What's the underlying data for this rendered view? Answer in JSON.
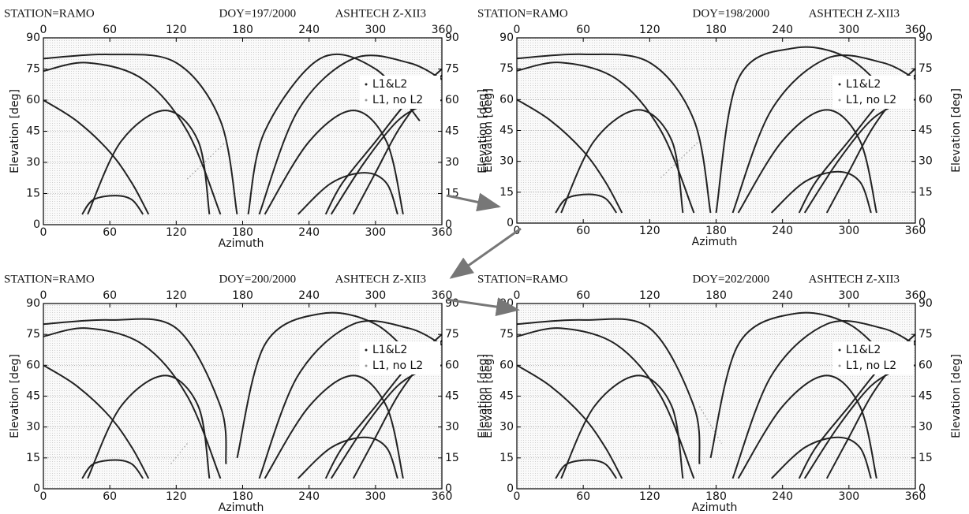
{
  "chart_data": [
    {
      "type": "track",
      "title_left": "STATION=RAMO",
      "title_center": "DOY=197/2000",
      "title_right": "ASHTECH Z-XII3",
      "xlabel": "Azimuth",
      "ylabel": "Elevation [deg]",
      "y2label": "Elevation [deg]",
      "xlim": [
        0,
        360
      ],
      "xticks": [
        0,
        60,
        120,
        180,
        240,
        300,
        360
      ],
      "ylim": [
        0,
        90
      ],
      "yticks": [
        0,
        15,
        30,
        45,
        60,
        75,
        90
      ],
      "y2lim": [
        0,
        90
      ],
      "y2ticks": [
        0,
        15,
        30,
        45,
        60,
        75,
        90
      ],
      "grid": true,
      "series": [
        {
          "name": "L1&L2",
          "color": "#222222",
          "tracks": [
            {
              "x": [
                0,
                40,
                90,
                130,
                160
              ],
              "y": [
                74,
                78,
                70,
                45,
                5
              ]
            },
            {
              "x": [
                0,
                30,
                60,
                80,
                95
              ],
              "y": [
                60,
                50,
                35,
                20,
                5
              ]
            },
            {
              "x": [
                35,
                45,
                65,
                80,
                90
              ],
              "y": [
                5,
                12,
                14,
                12,
                5
              ]
            },
            {
              "x": [
                40,
                70,
                110,
                140,
                150
              ],
              "y": [
                5,
                40,
                55,
                40,
                5
              ]
            },
            {
              "x": [
                0,
                60,
                120,
                160,
                175
              ],
              "y": [
                80,
                82,
                78,
                50,
                5
              ]
            },
            {
              "x": [
                185,
                200,
                250,
                300,
                340
              ],
              "y": [
                5,
                45,
                80,
                75,
                50
              ]
            },
            {
              "x": [
                195,
                230,
                280,
                330,
                360
              ],
              "y": [
                5,
                55,
                80,
                78,
                70
              ]
            },
            {
              "x": [
                200,
                240,
                280,
                310,
                325
              ],
              "y": [
                5,
                40,
                55,
                40,
                5
              ]
            },
            {
              "x": [
                260,
                290,
                320,
                345,
                360
              ],
              "y": [
                5,
                30,
                50,
                58,
                60
              ]
            },
            {
              "x": [
                280,
                300,
                320,
                340,
                360
              ],
              "y": [
                5,
                25,
                45,
                60,
                72
              ]
            },
            {
              "x": [
                360,
                330,
                300,
                270,
                255
              ],
              "y": [
                75,
                60,
                40,
                20,
                5
              ]
            },
            {
              "x": [
                230,
                260,
                290,
                310,
                320
              ],
              "y": [
                5,
                20,
                25,
                20,
                5
              ]
            }
          ]
        },
        {
          "name": "L1, no L2",
          "color": "#999999",
          "tracks": [
            {
              "x": [
                130,
                165
              ],
              "y": [
                22,
                40
              ]
            }
          ]
        }
      ]
    },
    {
      "type": "track",
      "title_left": "STATION=RAMO",
      "title_center": "DOY=198/2000",
      "title_right": "ASHTECH Z-XII3",
      "xlabel": "Azimuth",
      "ylabel": "Elevation [deg]",
      "y2label": "Elevation [deg]",
      "xlim": [
        0,
        360
      ],
      "xticks": [
        0,
        60,
        120,
        180,
        240,
        300,
        360
      ],
      "ylim": [
        0,
        90
      ],
      "yticks": [
        0,
        15,
        30,
        45,
        60,
        75,
        90
      ],
      "y2lim": [
        0,
        90
      ],
      "y2ticks": [
        0,
        15,
        30,
        45,
        60,
        75,
        90
      ],
      "grid": true,
      "series": [
        {
          "name": "L1&L2",
          "color": "#222222",
          "tracks": [
            {
              "x": [
                0,
                40,
                90,
                130,
                160
              ],
              "y": [
                74,
                78,
                70,
                45,
                5
              ]
            },
            {
              "x": [
                0,
                30,
                60,
                80,
                95
              ],
              "y": [
                60,
                50,
                35,
                20,
                5
              ]
            },
            {
              "x": [
                35,
                45,
                65,
                80,
                90
              ],
              "y": [
                5,
                12,
                14,
                12,
                5
              ]
            },
            {
              "x": [
                40,
                70,
                110,
                140,
                150
              ],
              "y": [
                5,
                40,
                55,
                40,
                5
              ]
            },
            {
              "x": [
                0,
                60,
                120,
                160,
                175
              ],
              "y": [
                80,
                82,
                78,
                50,
                5
              ]
            },
            {
              "x": [
                180,
                200,
                250,
                300,
                340
              ],
              "y": [
                5,
                70,
                85,
                80,
                60
              ]
            },
            {
              "x": [
                195,
                230,
                280,
                330,
                360
              ],
              "y": [
                5,
                55,
                80,
                78,
                70
              ]
            },
            {
              "x": [
                200,
                240,
                280,
                310,
                325
              ],
              "y": [
                5,
                40,
                55,
                40,
                5
              ]
            },
            {
              "x": [
                260,
                290,
                320,
                345,
                360
              ],
              "y": [
                5,
                30,
                50,
                58,
                60
              ]
            },
            {
              "x": [
                280,
                300,
                320,
                340,
                360
              ],
              "y": [
                5,
                25,
                45,
                60,
                72
              ]
            },
            {
              "x": [
                360,
                330,
                300,
                270,
                255
              ],
              "y": [
                75,
                60,
                40,
                20,
                5
              ]
            },
            {
              "x": [
                230,
                260,
                290,
                310,
                320
              ],
              "y": [
                5,
                20,
                25,
                20,
                5
              ]
            }
          ]
        },
        {
          "name": "L1, no L2",
          "color": "#999999",
          "tracks": [
            {
              "x": [
                130,
                165
              ],
              "y": [
                22,
                40
              ]
            }
          ]
        }
      ]
    },
    {
      "type": "track",
      "title_left": "STATION=RAMO",
      "title_center": "DOY=200/2000",
      "title_right": "ASHTECH Z-XII3",
      "xlabel": "Azimuth",
      "ylabel": "Elevation [deg]",
      "y2label": "Elevation [deg]",
      "xlim": [
        0,
        360
      ],
      "xticks": [
        0,
        60,
        120,
        180,
        240,
        300,
        360
      ],
      "ylim": [
        0,
        90
      ],
      "yticks": [
        0,
        15,
        30,
        45,
        60,
        75,
        90
      ],
      "y2lim": [
        0,
        90
      ],
      "y2ticks": [
        0,
        15,
        30,
        45,
        60,
        75,
        90
      ],
      "grid": true,
      "series": [
        {
          "name": "L1&L2",
          "color": "#222222",
          "tracks": [
            {
              "x": [
                0,
                40,
                90,
                130,
                160
              ],
              "y": [
                74,
                78,
                70,
                45,
                5
              ]
            },
            {
              "x": [
                0,
                30,
                60,
                80,
                95
              ],
              "y": [
                60,
                50,
                35,
                20,
                5
              ]
            },
            {
              "x": [
                35,
                45,
                65,
                80,
                90
              ],
              "y": [
                5,
                12,
                14,
                12,
                5
              ]
            },
            {
              "x": [
                40,
                70,
                110,
                140,
                150
              ],
              "y": [
                5,
                40,
                55,
                40,
                5
              ]
            },
            {
              "x": [
                0,
                60,
                120,
                160,
                165
              ],
              "y": [
                80,
                82,
                78,
                40,
                12
              ]
            },
            {
              "x": [
                175,
                200,
                250,
                300,
                340
              ],
              "y": [
                15,
                70,
                85,
                80,
                60
              ]
            },
            {
              "x": [
                195,
                230,
                280,
                330,
                360
              ],
              "y": [
                5,
                55,
                80,
                78,
                70
              ]
            },
            {
              "x": [
                200,
                240,
                280,
                310,
                325
              ],
              "y": [
                5,
                40,
                55,
                40,
                5
              ]
            },
            {
              "x": [
                260,
                290,
                320,
                345,
                360
              ],
              "y": [
                5,
                30,
                50,
                58,
                60
              ]
            },
            {
              "x": [
                280,
                300,
                320,
                340,
                360
              ],
              "y": [
                5,
                25,
                45,
                60,
                72
              ]
            },
            {
              "x": [
                360,
                330,
                300,
                270,
                255
              ],
              "y": [
                75,
                60,
                40,
                20,
                5
              ]
            },
            {
              "x": [
                230,
                260,
                290,
                310,
                320
              ],
              "y": [
                5,
                20,
                25,
                20,
                5
              ]
            }
          ]
        },
        {
          "name": "L1, no L2",
          "color": "#999999",
          "tracks": [
            {
              "x": [
                130,
                115
              ],
              "y": [
                22,
                12
              ]
            }
          ]
        }
      ]
    },
    {
      "type": "track",
      "title_left": "STATION=RAMO",
      "title_center": "DOY=202/2000",
      "title_right": "ASHTECH Z-XII3",
      "xlabel": "Azimuth",
      "ylabel": "Elevation [deg]",
      "y2label": "Elevation [deg]",
      "xlim": [
        0,
        360
      ],
      "xticks": [
        0,
        60,
        120,
        180,
        240,
        300,
        360
      ],
      "ylim": [
        0,
        90
      ],
      "yticks": [
        0,
        15,
        30,
        45,
        60,
        75,
        90
      ],
      "y2lim": [
        0,
        90
      ],
      "y2ticks": [
        0,
        15,
        30,
        45,
        60,
        75,
        90
      ],
      "grid": true,
      "series": [
        {
          "name": "L1&L2",
          "color": "#222222",
          "tracks": [
            {
              "x": [
                0,
                40,
                90,
                130,
                160
              ],
              "y": [
                74,
                78,
                70,
                45,
                5
              ]
            },
            {
              "x": [
                0,
                30,
                60,
                80,
                95
              ],
              "y": [
                60,
                50,
                35,
                20,
                5
              ]
            },
            {
              "x": [
                35,
                45,
                65,
                80,
                90
              ],
              "y": [
                5,
                12,
                14,
                12,
                5
              ]
            },
            {
              "x": [
                40,
                70,
                110,
                140,
                150
              ],
              "y": [
                5,
                40,
                55,
                40,
                5
              ]
            },
            {
              "x": [
                0,
                60,
                120,
                160,
                165
              ],
              "y": [
                80,
                82,
                78,
                40,
                12
              ]
            },
            {
              "x": [
                175,
                200,
                250,
                300,
                340
              ],
              "y": [
                15,
                70,
                85,
                80,
                60
              ]
            },
            {
              "x": [
                195,
                230,
                280,
                330,
                360
              ],
              "y": [
                5,
                55,
                80,
                78,
                70
              ]
            },
            {
              "x": [
                200,
                240,
                280,
                310,
                325
              ],
              "y": [
                5,
                40,
                55,
                40,
                5
              ]
            },
            {
              "x": [
                260,
                290,
                320,
                345,
                360
              ],
              "y": [
                5,
                30,
                50,
                58,
                60
              ]
            },
            {
              "x": [
                280,
                300,
                320,
                340,
                360
              ],
              "y": [
                5,
                25,
                45,
                60,
                72
              ]
            },
            {
              "x": [
                360,
                330,
                300,
                270,
                255
              ],
              "y": [
                75,
                60,
                40,
                20,
                5
              ]
            },
            {
              "x": [
                230,
                260,
                290,
                310,
                320
              ],
              "y": [
                5,
                20,
                25,
                20,
                5
              ]
            }
          ]
        },
        {
          "name": "L1, no L2",
          "color": "#999999",
          "tracks": [
            {
              "x": [
                165,
                185
              ],
              "y": [
                40,
                22
              ]
            }
          ]
        }
      ]
    }
  ]
}
